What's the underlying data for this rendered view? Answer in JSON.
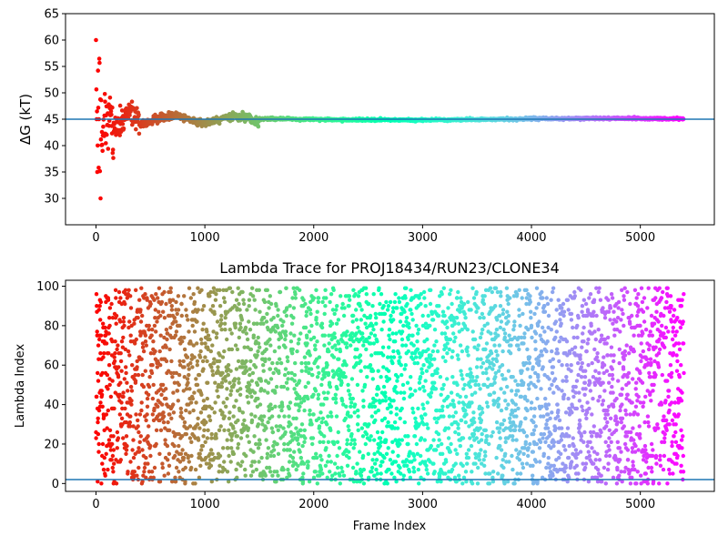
{
  "chart_data": [
    {
      "type": "scatter",
      "title": "",
      "xlabel": "",
      "ylabel": "ΔG (kT)",
      "xlim": [
        -280,
        5680
      ],
      "ylim": [
        25,
        65
      ],
      "xticks": [
        0,
        1000,
        2000,
        3000,
        4000,
        5000
      ],
      "yticks": [
        30,
        35,
        40,
        45,
        50,
        55,
        60,
        65
      ],
      "colormap": "rainbow (red → violet reversed along frame index)",
      "reference_line": {
        "y": 45,
        "color": "#1f77b4"
      },
      "n_frames": 5400,
      "series_description": "Per-frame free energy estimate; wide scatter (26–60) for frames 0–150, converging to ~45 by frame 1500 and flat at ~45 through frame 5400"
    },
    {
      "type": "scatter",
      "title": "Lambda Trace for PROJ18434/RUN23/CLONE34",
      "xlabel": "Frame Index",
      "ylabel": "Lambda Index",
      "xlim": [
        -280,
        5680
      ],
      "ylim": [
        -4,
        103
      ],
      "xticks": [
        0,
        1000,
        2000,
        3000,
        4000,
        5000
      ],
      "yticks": [
        0,
        20,
        40,
        60,
        80,
        100
      ],
      "colormap": "rainbow (red → violet reversed along frame index)",
      "reference_line": {
        "y": 2,
        "color": "#1f77b4"
      },
      "lambda_range": [
        0,
        99
      ],
      "n_frames": 5400,
      "series_description": "Lambda index sampled per frame, uniformly spread over 0–99 across frames 0–5400"
    }
  ]
}
